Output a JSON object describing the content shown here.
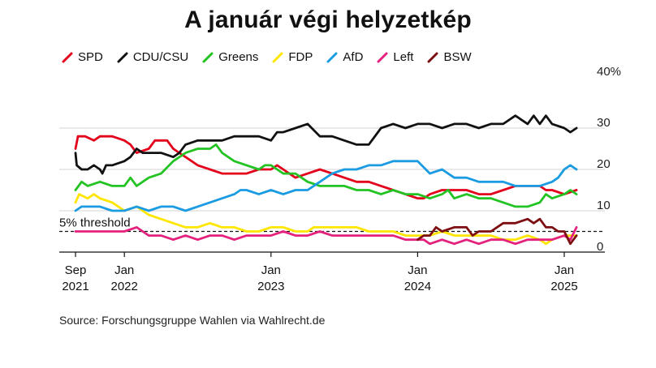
{
  "chart_data": {
    "type": "line",
    "title": "A január végi helyzetkép",
    "source": "Source: Forschungsgruppe Wahlen via Wahlrecht.de",
    "xlabel": "",
    "ylabel": "",
    "x_range_months": [
      0,
      40.5
    ],
    "ylim": [
      0,
      40
    ],
    "yticks": [
      {
        "value": 0,
        "label": "0"
      },
      {
        "value": 10,
        "label": "10"
      },
      {
        "value": 20,
        "label": "20"
      },
      {
        "value": 30,
        "label": "30"
      },
      {
        "value": 40,
        "label": "40%"
      }
    ],
    "xticks": [
      {
        "month": 0,
        "label1": "Sep",
        "label2": "2021"
      },
      {
        "month": 4,
        "label1": "Jan",
        "label2": "2022"
      },
      {
        "month": 16,
        "label1": "Jan",
        "label2": "2023"
      },
      {
        "month": 28,
        "label1": "Jan",
        "label2": "2024"
      },
      {
        "month": 40,
        "label1": "Jan",
        "label2": "2025"
      }
    ],
    "threshold": {
      "value": 5,
      "label": "5% threshold"
    },
    "series": [
      {
        "name": "SPD",
        "color": "#e3001b",
        "points": [
          [
            0,
            25
          ],
          [
            0.2,
            28
          ],
          [
            0.8,
            28
          ],
          [
            1.5,
            27
          ],
          [
            2,
            28
          ],
          [
            3,
            28
          ],
          [
            4,
            27
          ],
          [
            4.5,
            26
          ],
          [
            5,
            24
          ],
          [
            6,
            25
          ],
          [
            6.5,
            27
          ],
          [
            7.5,
            27
          ],
          [
            8,
            25
          ],
          [
            8.5,
            24
          ],
          [
            9,
            23
          ],
          [
            10,
            21
          ],
          [
            11,
            20
          ],
          [
            12,
            19
          ],
          [
            13,
            19
          ],
          [
            14,
            19
          ],
          [
            15,
            20
          ],
          [
            16,
            20
          ],
          [
            16.5,
            21
          ],
          [
            17,
            20
          ],
          [
            18,
            18
          ],
          [
            19,
            19
          ],
          [
            20,
            20
          ],
          [
            21,
            19
          ],
          [
            22,
            18
          ],
          [
            23,
            17
          ],
          [
            24,
            17
          ],
          [
            25,
            16
          ],
          [
            26,
            15
          ],
          [
            27,
            14
          ],
          [
            28,
            13
          ],
          [
            28.5,
            13
          ],
          [
            29,
            14
          ],
          [
            30,
            15
          ],
          [
            31,
            15
          ],
          [
            32,
            15
          ],
          [
            33,
            14
          ],
          [
            34,
            14
          ],
          [
            35,
            15
          ],
          [
            36,
            16
          ],
          [
            37,
            16
          ],
          [
            38,
            16
          ],
          [
            38.5,
            15
          ],
          [
            39,
            15
          ],
          [
            40,
            14
          ],
          [
            41,
            15
          ]
        ]
      },
      {
        "name": "CDU/CSU",
        "color": "#111111",
        "points": [
          [
            0,
            24
          ],
          [
            0.1,
            21
          ],
          [
            0.5,
            20
          ],
          [
            1,
            20
          ],
          [
            1.5,
            21
          ],
          [
            2,
            20
          ],
          [
            2.2,
            19
          ],
          [
            2.5,
            21
          ],
          [
            3,
            21
          ],
          [
            4,
            22
          ],
          [
            4.5,
            23
          ],
          [
            5,
            25
          ],
          [
            5.5,
            24
          ],
          [
            6,
            24
          ],
          [
            7,
            24
          ],
          [
            8,
            23
          ],
          [
            8.5,
            24
          ],
          [
            9,
            26
          ],
          [
            10,
            27
          ],
          [
            11,
            27
          ],
          [
            12,
            27
          ],
          [
            13,
            28
          ],
          [
            14,
            28
          ],
          [
            15,
            28
          ],
          [
            16,
            27
          ],
          [
            16.5,
            29
          ],
          [
            17,
            29
          ],
          [
            18,
            30
          ],
          [
            19,
            31
          ],
          [
            20,
            28
          ],
          [
            21,
            28
          ],
          [
            22,
            27
          ],
          [
            23,
            26
          ],
          [
            24,
            26
          ],
          [
            25,
            30
          ],
          [
            26,
            31
          ],
          [
            27,
            30
          ],
          [
            28,
            31
          ],
          [
            29,
            31
          ],
          [
            30,
            30
          ],
          [
            31,
            31
          ],
          [
            32,
            31
          ],
          [
            33,
            30
          ],
          [
            34,
            31
          ],
          [
            35,
            31
          ],
          [
            36,
            33
          ],
          [
            36.5,
            32
          ],
          [
            37,
            31
          ],
          [
            37.5,
            33
          ],
          [
            38,
            31
          ],
          [
            38.5,
            33
          ],
          [
            39,
            31
          ],
          [
            40,
            30
          ],
          [
            40.5,
            29
          ],
          [
            41,
            30
          ]
        ]
      },
      {
        "name": "Greens",
        "color": "#22c322",
        "points": [
          [
            0,
            15
          ],
          [
            0.5,
            17
          ],
          [
            1,
            16
          ],
          [
            2,
            17
          ],
          [
            3,
            16
          ],
          [
            4,
            16
          ],
          [
            4.5,
            18
          ],
          [
            5,
            16
          ],
          [
            6,
            18
          ],
          [
            7,
            19
          ],
          [
            8,
            22
          ],
          [
            9,
            24
          ],
          [
            10,
            25
          ],
          [
            11,
            25
          ],
          [
            11.5,
            26
          ],
          [
            12,
            24
          ],
          [
            13,
            22
          ],
          [
            14,
            21
          ],
          [
            15,
            20
          ],
          [
            15.5,
            21
          ],
          [
            16,
            21
          ],
          [
            17,
            19
          ],
          [
            18,
            19
          ],
          [
            18.5,
            18
          ],
          [
            19,
            17
          ],
          [
            20,
            16
          ],
          [
            21,
            16
          ],
          [
            22,
            16
          ],
          [
            23,
            15
          ],
          [
            24,
            15
          ],
          [
            25,
            14
          ],
          [
            26,
            15
          ],
          [
            27,
            14
          ],
          [
            28,
            14
          ],
          [
            29,
            13
          ],
          [
            30,
            14
          ],
          [
            30.5,
            15
          ],
          [
            31,
            13
          ],
          [
            32,
            14
          ],
          [
            33,
            13
          ],
          [
            34,
            13
          ],
          [
            35,
            12
          ],
          [
            36,
            11
          ],
          [
            37,
            11
          ],
          [
            38,
            12
          ],
          [
            38.5,
            14
          ],
          [
            39,
            13
          ],
          [
            40,
            14
          ],
          [
            40.5,
            15
          ],
          [
            41,
            14
          ]
        ]
      },
      {
        "name": "FDP",
        "color": "#ffe600",
        "points": [
          [
            0,
            12
          ],
          [
            0.3,
            14
          ],
          [
            1,
            13
          ],
          [
            1.5,
            14
          ],
          [
            2,
            13
          ],
          [
            3,
            12
          ],
          [
            4,
            10
          ],
          [
            5,
            11
          ],
          [
            6,
            9
          ],
          [
            7,
            8
          ],
          [
            8,
            7
          ],
          [
            9,
            6
          ],
          [
            10,
            6
          ],
          [
            11,
            7
          ],
          [
            12,
            6
          ],
          [
            13,
            6
          ],
          [
            14,
            5
          ],
          [
            15,
            5
          ],
          [
            16,
            6
          ],
          [
            17,
            6
          ],
          [
            18,
            5
          ],
          [
            19,
            5
          ],
          [
            19.5,
            6
          ],
          [
            20,
            6
          ],
          [
            22,
            6
          ],
          [
            23,
            6
          ],
          [
            24,
            5
          ],
          [
            25,
            5
          ],
          [
            26,
            5
          ],
          [
            27,
            4
          ],
          [
            28,
            4
          ],
          [
            29,
            4
          ],
          [
            30,
            5
          ],
          [
            31,
            4
          ],
          [
            32,
            4
          ],
          [
            33,
            4
          ],
          [
            34,
            4
          ],
          [
            35,
            3
          ],
          [
            36,
            3
          ],
          [
            37,
            4
          ],
          [
            38,
            3
          ],
          [
            38.5,
            2
          ],
          [
            39,
            3
          ],
          [
            40,
            4
          ],
          [
            41,
            4
          ]
        ]
      },
      {
        "name": "AfD",
        "color": "#1a9be2",
        "points": [
          [
            0,
            10
          ],
          [
            0.5,
            11
          ],
          [
            1,
            11
          ],
          [
            1.5,
            11
          ],
          [
            2,
            11
          ],
          [
            3,
            10
          ],
          [
            4,
            10
          ],
          [
            5,
            11
          ],
          [
            6,
            10
          ],
          [
            7,
            11
          ],
          [
            8,
            11
          ],
          [
            9,
            10
          ],
          [
            10,
            11
          ],
          [
            11,
            12
          ],
          [
            12,
            13
          ],
          [
            13,
            14
          ],
          [
            13.5,
            15
          ],
          [
            14,
            15
          ],
          [
            15,
            14
          ],
          [
            16,
            15
          ],
          [
            17,
            14
          ],
          [
            18,
            15
          ],
          [
            19,
            15
          ],
          [
            20,
            17
          ],
          [
            21,
            19
          ],
          [
            22,
            20
          ],
          [
            23,
            20
          ],
          [
            24,
            21
          ],
          [
            25,
            21
          ],
          [
            26,
            22
          ],
          [
            27,
            22
          ],
          [
            28,
            22
          ],
          [
            29,
            19
          ],
          [
            30,
            20
          ],
          [
            31,
            18
          ],
          [
            32,
            18
          ],
          [
            33,
            17
          ],
          [
            34,
            17
          ],
          [
            35,
            17
          ],
          [
            36,
            16
          ],
          [
            37,
            16
          ],
          [
            38,
            16
          ],
          [
            39,
            17
          ],
          [
            39.5,
            18
          ],
          [
            40,
            20
          ],
          [
            40.5,
            21
          ],
          [
            41,
            20
          ]
        ]
      },
      {
        "name": "Left",
        "color": "#e5217e",
        "points": [
          [
            0,
            5
          ],
          [
            1,
            5
          ],
          [
            2,
            5
          ],
          [
            3,
            5
          ],
          [
            4,
            5
          ],
          [
            5,
            6
          ],
          [
            6,
            4
          ],
          [
            7,
            4
          ],
          [
            8,
            3
          ],
          [
            9,
            4
          ],
          [
            10,
            3
          ],
          [
            11,
            4
          ],
          [
            12,
            4
          ],
          [
            13,
            3
          ],
          [
            14,
            4
          ],
          [
            15,
            4
          ],
          [
            16,
            4
          ],
          [
            17,
            5
          ],
          [
            18,
            4
          ],
          [
            19,
            4
          ],
          [
            20,
            5
          ],
          [
            21,
            4
          ],
          [
            22,
            4
          ],
          [
            23,
            4
          ],
          [
            24,
            4
          ],
          [
            25,
            4
          ],
          [
            26,
            4
          ],
          [
            27,
            3
          ],
          [
            28,
            3
          ],
          [
            28.5,
            3
          ],
          [
            29,
            2
          ],
          [
            30,
            3
          ],
          [
            31,
            2
          ],
          [
            32,
            3
          ],
          [
            33,
            2
          ],
          [
            34,
            3
          ],
          [
            35,
            3
          ],
          [
            36,
            2
          ],
          [
            37,
            3
          ],
          [
            38,
            3
          ],
          [
            39,
            3
          ],
          [
            40,
            4
          ],
          [
            40.5,
            3
          ],
          [
            41,
            6
          ]
        ]
      },
      {
        "name": "BSW",
        "color": "#7d0e12",
        "points": [
          [
            28,
            3
          ],
          [
            28.5,
            4
          ],
          [
            29,
            4
          ],
          [
            29.5,
            6
          ],
          [
            30,
            5
          ],
          [
            31,
            6
          ],
          [
            32,
            6
          ],
          [
            32.5,
            4
          ],
          [
            33,
            5
          ],
          [
            34,
            5
          ],
          [
            35,
            7
          ],
          [
            36,
            7
          ],
          [
            37,
            8
          ],
          [
            37.5,
            7
          ],
          [
            38,
            8
          ],
          [
            38.5,
            6
          ],
          [
            39,
            6
          ],
          [
            39.5,
            5
          ],
          [
            40,
            5
          ],
          [
            40.5,
            2
          ],
          [
            41,
            4
          ]
        ]
      }
    ]
  }
}
